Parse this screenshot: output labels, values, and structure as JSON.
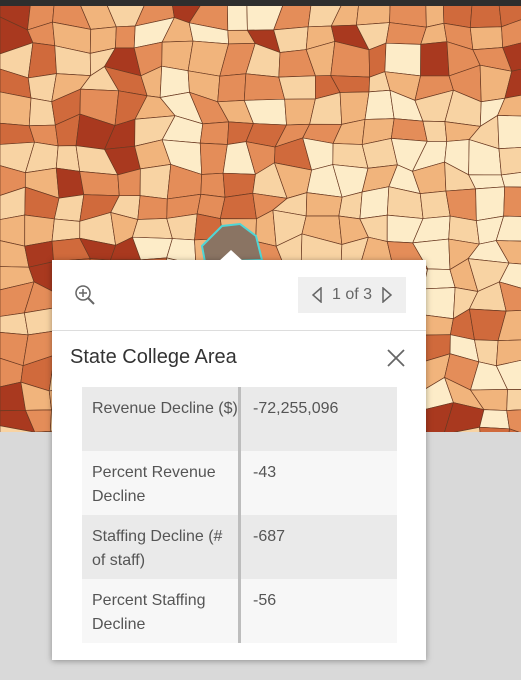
{
  "popup": {
    "pager": "1 of 3",
    "title": "State College Area",
    "fields": [
      {
        "label": "Revenue Decline ($)",
        "value": "-72,255,096"
      },
      {
        "label": "Percent Revenue Decline",
        "value": "-43"
      },
      {
        "label": "Staffing Decline (# of staff)",
        "value": "-687"
      },
      {
        "label": "Percent Staffing Decline",
        "value": "-56"
      }
    ]
  }
}
